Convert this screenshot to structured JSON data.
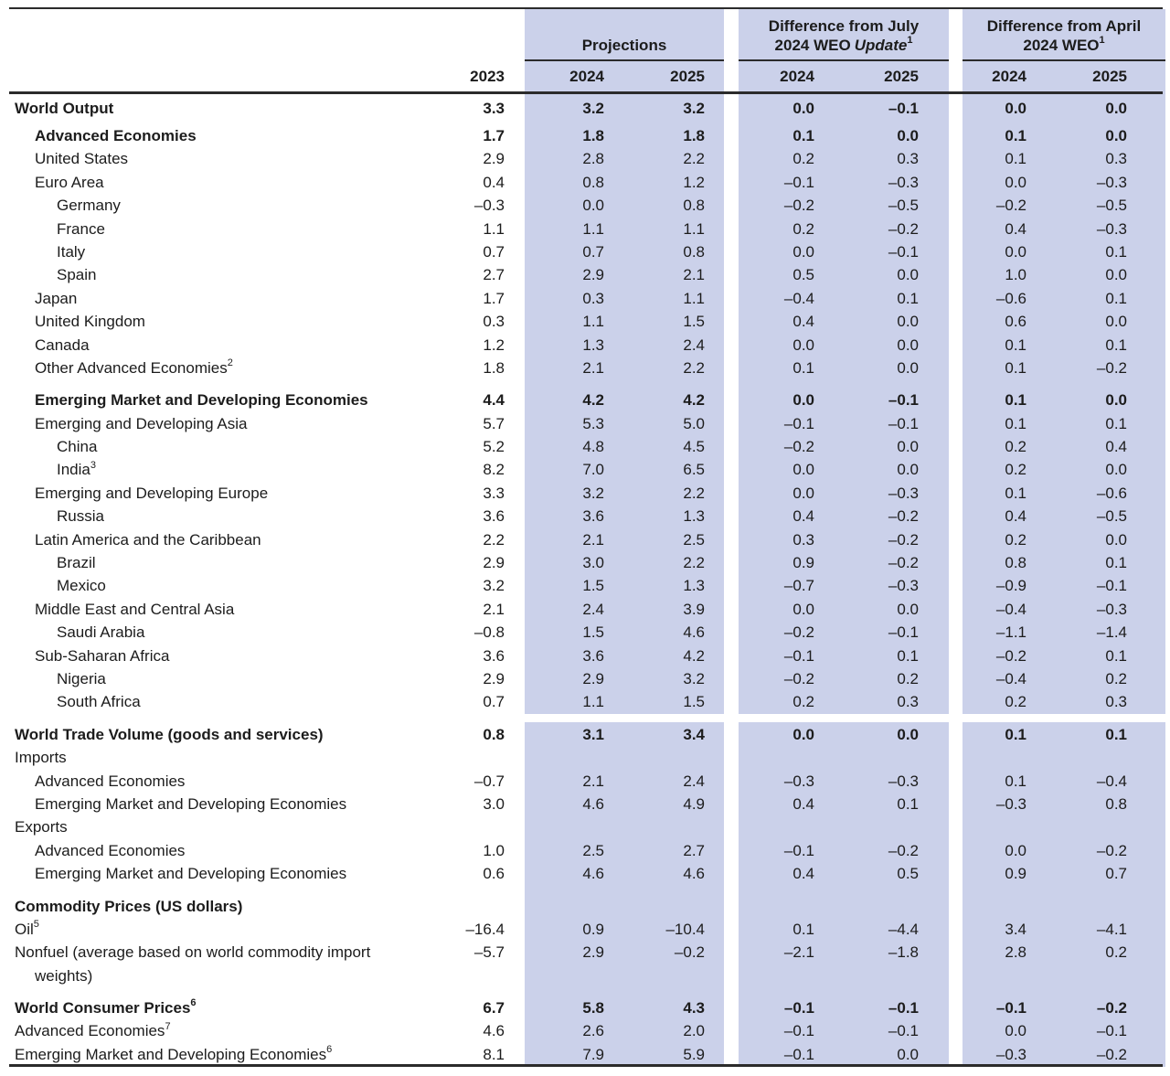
{
  "header": {
    "year_col": "2023",
    "groups": [
      {
        "title": "Projections",
        "years": [
          "2024",
          "2025"
        ]
      },
      {
        "line1": "Difference from July",
        "line2_prefix": "2024 WEO",
        "line2_italic": "Update",
        "line2_sup": "1",
        "years": [
          "2024",
          "2025"
        ]
      },
      {
        "line1": "Difference from April",
        "line2_prefix": "2024 WEO",
        "line2_sup": "1",
        "years": [
          "2024",
          "2025"
        ]
      }
    ]
  },
  "columns": [
    "2023",
    "Projections 2024",
    "Projections 2025",
    "Diff July 2024",
    "Diff July 2025",
    "Diff April 2024",
    "Diff April 2025"
  ],
  "rows": [
    {
      "label": "World Output",
      "indent": 0,
      "bold": true,
      "first": true,
      "values": [
        "3.3",
        "3.2",
        "3.2",
        "0.0",
        "–0.1",
        "0.0",
        "0.0"
      ]
    },
    {
      "label": "Advanced Economies",
      "indent": 1,
      "bold": true,
      "gap": "sm",
      "values": [
        "1.7",
        "1.8",
        "1.8",
        "0.1",
        "0.0",
        "0.1",
        "0.0"
      ]
    },
    {
      "label": "United States",
      "indent": 1,
      "values": [
        "2.9",
        "2.8",
        "2.2",
        "0.2",
        "0.3",
        "0.1",
        "0.3"
      ]
    },
    {
      "label": "Euro Area",
      "indent": 1,
      "values": [
        "0.4",
        "0.8",
        "1.2",
        "–0.1",
        "–0.3",
        "0.0",
        "–0.3"
      ]
    },
    {
      "label": "Germany",
      "indent": 2,
      "values": [
        "–0.3",
        "0.0",
        "0.8",
        "–0.2",
        "–0.5",
        "–0.2",
        "–0.5"
      ]
    },
    {
      "label": "France",
      "indent": 2,
      "values": [
        "1.1",
        "1.1",
        "1.1",
        "0.2",
        "–0.2",
        "0.4",
        "–0.3"
      ]
    },
    {
      "label": "Italy",
      "indent": 2,
      "values": [
        "0.7",
        "0.7",
        "0.8",
        "0.0",
        "–0.1",
        "0.0",
        "0.1"
      ]
    },
    {
      "label": "Spain",
      "indent": 2,
      "values": [
        "2.7",
        "2.9",
        "2.1",
        "0.5",
        "0.0",
        "1.0",
        "0.0"
      ]
    },
    {
      "label": "Japan",
      "indent": 1,
      "values": [
        "1.7",
        "0.3",
        "1.1",
        "–0.4",
        "0.1",
        "–0.6",
        "0.1"
      ]
    },
    {
      "label": "United Kingdom",
      "indent": 1,
      "values": [
        "0.3",
        "1.1",
        "1.5",
        "0.4",
        "0.0",
        "0.6",
        "0.0"
      ]
    },
    {
      "label": "Canada",
      "indent": 1,
      "values": [
        "1.2",
        "1.3",
        "2.4",
        "0.0",
        "0.0",
        "0.1",
        "0.1"
      ]
    },
    {
      "label": "Other Advanced Economies",
      "sup": "2",
      "indent": 1,
      "values": [
        "1.8",
        "2.1",
        "2.2",
        "0.1",
        "0.0",
        "0.1",
        "–0.2"
      ]
    },
    {
      "label": "Emerging Market and Developing Economies",
      "indent": 1,
      "bold": true,
      "gap": "md",
      "values": [
        "4.4",
        "4.2",
        "4.2",
        "0.0",
        "–0.1",
        "0.1",
        "0.0"
      ]
    },
    {
      "label": "Emerging and Developing Asia",
      "indent": 1,
      "values": [
        "5.7",
        "5.3",
        "5.0",
        "–0.1",
        "–0.1",
        "0.1",
        "0.1"
      ]
    },
    {
      "label": "China",
      "indent": 2,
      "values": [
        "5.2",
        "4.8",
        "4.5",
        "–0.2",
        "0.0",
        "0.2",
        "0.4"
      ]
    },
    {
      "label": "India",
      "sup": "3",
      "indent": 2,
      "values": [
        "8.2",
        "7.0",
        "6.5",
        "0.0",
        "0.0",
        "0.2",
        "0.0"
      ]
    },
    {
      "label": "Emerging and Developing Europe",
      "indent": 1,
      "values": [
        "3.3",
        "3.2",
        "2.2",
        "0.0",
        "–0.3",
        "0.1",
        "–0.6"
      ]
    },
    {
      "label": "Russia",
      "indent": 2,
      "values": [
        "3.6",
        "3.6",
        "1.3",
        "0.4",
        "–0.2",
        "0.4",
        "–0.5"
      ]
    },
    {
      "label": "Latin America and the Caribbean",
      "indent": 1,
      "values": [
        "2.2",
        "2.1",
        "2.5",
        "0.3",
        "–0.2",
        "0.2",
        "0.0"
      ]
    },
    {
      "label": "Brazil",
      "indent": 2,
      "values": [
        "2.9",
        "3.0",
        "2.2",
        "0.9",
        "–0.2",
        "0.8",
        "0.1"
      ]
    },
    {
      "label": "Mexico",
      "indent": 2,
      "values": [
        "3.2",
        "1.5",
        "1.3",
        "–0.7",
        "–0.3",
        "–0.9",
        "–0.1"
      ]
    },
    {
      "label": "Middle East and Central Asia",
      "indent": 1,
      "values": [
        "2.1",
        "2.4",
        "3.9",
        "0.0",
        "0.0",
        "–0.4",
        "–0.3"
      ]
    },
    {
      "label": "Saudi Arabia",
      "indent": 2,
      "values": [
        "–0.8",
        "1.5",
        "4.6",
        "–0.2",
        "–0.1",
        "–1.1",
        "–1.4"
      ]
    },
    {
      "label": "Sub-Saharan Africa",
      "indent": 1,
      "values": [
        "3.6",
        "3.6",
        "4.2",
        "–0.1",
        "0.1",
        "–0.2",
        "0.1"
      ]
    },
    {
      "label": "Nigeria",
      "indent": 2,
      "values": [
        "2.9",
        "2.9",
        "3.2",
        "–0.2",
        "0.2",
        "–0.4",
        "0.2"
      ]
    },
    {
      "label": "South Africa",
      "indent": 2,
      "values": [
        "0.7",
        "1.1",
        "1.5",
        "0.2",
        "0.3",
        "0.2",
        "0.3"
      ]
    },
    {
      "label": "World Trade Volume (goods and services)",
      "indent": 0,
      "bold": true,
      "gap": "md",
      "values": [
        "0.8",
        "3.1",
        "3.4",
        "0.0",
        "0.0",
        "0.1",
        "0.1"
      ]
    },
    {
      "label": "Imports",
      "indent": 0,
      "values": [
        "",
        "",
        "",
        "",
        "",
        "",
        ""
      ]
    },
    {
      "label": "Advanced Economies",
      "indent": 1,
      "values": [
        "–0.7",
        "2.1",
        "2.4",
        "–0.3",
        "–0.3",
        "0.1",
        "–0.4"
      ]
    },
    {
      "label": "Emerging Market and Developing Economies",
      "indent": 1,
      "values": [
        "3.0",
        "4.6",
        "4.9",
        "0.4",
        "0.1",
        "–0.3",
        "0.8"
      ]
    },
    {
      "label": "Exports",
      "indent": 0,
      "values": [
        "",
        "",
        "",
        "",
        "",
        "",
        ""
      ]
    },
    {
      "label": "Advanced Economies",
      "indent": 1,
      "values": [
        "1.0",
        "2.5",
        "2.7",
        "–0.1",
        "–0.2",
        "0.0",
        "–0.2"
      ]
    },
    {
      "label": "Emerging Market and Developing Economies",
      "indent": 1,
      "values": [
        "0.6",
        "4.6",
        "4.6",
        "0.4",
        "0.5",
        "0.9",
        "0.7"
      ]
    },
    {
      "label": "Commodity Prices (US dollars)",
      "indent": 0,
      "bold": true,
      "gap": "md",
      "values": [
        "",
        "",
        "",
        "",
        "",
        "",
        ""
      ]
    },
    {
      "label": "Oil",
      "sup": "5",
      "indent": 0,
      "values": [
        "–16.4",
        "0.9",
        "–10.4",
        "0.1",
        "–4.4",
        "3.4",
        "–4.1"
      ]
    },
    {
      "label": "Nonfuel (average based on world commodity import",
      "label2": "weights)",
      "indent": 0,
      "wrap": true,
      "values": [
        "–5.7",
        "2.9",
        "–0.2",
        "–2.1",
        "–1.8",
        "2.8",
        "0.2"
      ]
    },
    {
      "label": "World Consumer Prices",
      "sup": "6",
      "indent": 0,
      "bold": true,
      "gap": "md",
      "values": [
        "6.7",
        "5.8",
        "4.3",
        "–0.1",
        "–0.1",
        "–0.1",
        "–0.2"
      ]
    },
    {
      "label": "Advanced Economies",
      "sup": "7",
      "indent": 0,
      "values": [
        "4.6",
        "2.6",
        "2.0",
        "–0.1",
        "–0.1",
        "0.0",
        "–0.1"
      ]
    },
    {
      "label": "Emerging Market and Developing Economies",
      "sup": "6",
      "indent": 0,
      "values": [
        "8.1",
        "7.9",
        "5.9",
        "–0.1",
        "0.0",
        "–0.3",
        "–0.2"
      ]
    }
  ]
}
